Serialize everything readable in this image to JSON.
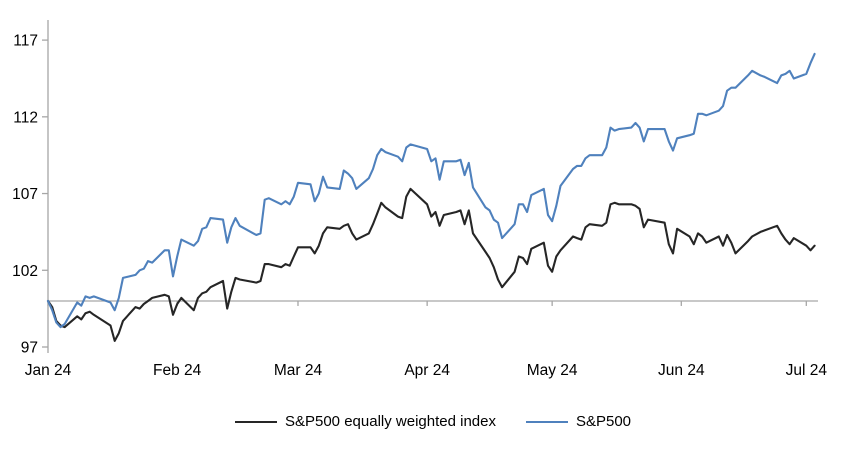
{
  "chart_data": {
    "type": "line",
    "title": "",
    "legend_position": "bottom",
    "axis_color": "#A6A6A6",
    "baseline_value": 100,
    "y_axis": {
      "tick_values": [
        97,
        102,
        107,
        112,
        117
      ],
      "tick_labels": [
        "97",
        "102",
        "107",
        "112",
        "117"
      ],
      "min": 97,
      "max": 117
    },
    "x_axis": {
      "tick_labels": [
        "Jan 24",
        "Feb 24",
        "Mar 24",
        "Apr 24",
        "May 24",
        "Jun 24",
        "Jul 24"
      ],
      "month_start_offsets": [
        0,
        31,
        60,
        91,
        121,
        152,
        182
      ],
      "days_shown": 184
    },
    "dates": [
      "01-01",
      "01-02",
      "01-03",
      "01-04",
      "01-05",
      "01-08",
      "01-09",
      "01-10",
      "01-11",
      "01-12",
      "01-16",
      "01-17",
      "01-18",
      "01-19",
      "01-22",
      "01-23",
      "01-24",
      "01-25",
      "01-26",
      "01-29",
      "01-30",
      "01-31",
      "02-01",
      "02-02",
      "02-05",
      "02-06",
      "02-07",
      "02-08",
      "02-09",
      "02-12",
      "02-13",
      "02-14",
      "02-15",
      "02-16",
      "02-20",
      "02-21",
      "02-22",
      "02-23",
      "02-26",
      "02-27",
      "02-28",
      "02-29",
      "03-01",
      "03-04",
      "03-05",
      "03-06",
      "03-07",
      "03-08",
      "03-11",
      "03-12",
      "03-13",
      "03-14",
      "03-15",
      "03-18",
      "03-19",
      "03-20",
      "03-21",
      "03-22",
      "03-25",
      "03-26",
      "03-27",
      "03-28",
      "04-01",
      "04-02",
      "04-03",
      "04-04",
      "04-05",
      "04-08",
      "04-09",
      "04-10",
      "04-11",
      "04-12",
      "04-15",
      "04-16",
      "04-17",
      "04-18",
      "04-19",
      "04-22",
      "04-23",
      "04-24",
      "04-25",
      "04-26",
      "04-29",
      "04-30",
      "05-01",
      "05-02",
      "05-03",
      "05-06",
      "05-07",
      "05-08",
      "05-09",
      "05-10",
      "05-13",
      "05-14",
      "05-15",
      "05-16",
      "05-17",
      "05-20",
      "05-21",
      "05-22",
      "05-23",
      "05-24",
      "05-28",
      "05-29",
      "05-30",
      "05-31",
      "06-03",
      "06-04",
      "06-05",
      "06-06",
      "06-07",
      "06-10",
      "06-11",
      "06-12",
      "06-13",
      "06-14",
      "06-17",
      "06-18",
      "06-20",
      "06-21",
      "06-24",
      "06-25",
      "06-26",
      "06-27",
      "06-28",
      "07-01",
      "07-02",
      "07-03"
    ],
    "series": [
      {
        "name": "S&P500 equally weighted index",
        "color": "#262626",
        "values": [
          100.0,
          99.6,
          98.7,
          98.4,
          98.3,
          99.0,
          98.8,
          99.2,
          99.3,
          99.1,
          98.4,
          97.4,
          97.9,
          98.7,
          99.6,
          99.5,
          99.8,
          100.0,
          100.2,
          100.4,
          100.3,
          99.1,
          99.8,
          100.2,
          99.4,
          100.2,
          100.5,
          100.6,
          100.9,
          101.3,
          99.5,
          100.6,
          101.5,
          101.4,
          101.2,
          101.3,
          102.4,
          102.4,
          102.2,
          102.4,
          102.3,
          102.9,
          103.5,
          103.5,
          103.1,
          103.6,
          104.4,
          104.8,
          104.7,
          104.9,
          105.0,
          104.4,
          104.0,
          104.4,
          105.0,
          105.7,
          106.4,
          106.1,
          105.5,
          105.4,
          106.8,
          107.3,
          106.3,
          105.5,
          105.8,
          104.9,
          105.6,
          105.8,
          105.9,
          105.0,
          105.9,
          104.4,
          103.2,
          102.8,
          102.2,
          101.4,
          100.9,
          101.9,
          102.9,
          102.8,
          102.4,
          103.4,
          103.8,
          102.3,
          101.9,
          102.9,
          103.3,
          104.2,
          104.1,
          104.0,
          104.8,
          105.0,
          104.9,
          105.1,
          106.3,
          106.4,
          106.3,
          106.3,
          106.2,
          106.0,
          104.8,
          105.3,
          105.1,
          103.7,
          103.1,
          104.7,
          104.2,
          103.7,
          104.4,
          104.2,
          103.8,
          104.2,
          103.6,
          104.3,
          103.8,
          103.1,
          103.9,
          104.2,
          104.5,
          104.6,
          104.9,
          104.4,
          104.0,
          103.7,
          104.1,
          103.6,
          103.3,
          103.6
        ]
      },
      {
        "name": "S&P500",
        "color": "#4F81BD",
        "values": [
          100.0,
          99.4,
          98.6,
          98.3,
          98.5,
          99.9,
          99.7,
          100.3,
          100.2,
          100.3,
          99.9,
          99.4,
          100.2,
          101.5,
          101.7,
          102.0,
          102.1,
          102.6,
          102.5,
          103.3,
          103.3,
          101.6,
          102.9,
          104.0,
          103.6,
          103.9,
          104.7,
          104.8,
          105.4,
          105.3,
          103.8,
          104.8,
          105.4,
          104.9,
          104.3,
          104.4,
          106.6,
          106.7,
          106.3,
          106.5,
          106.3,
          106.8,
          107.7,
          107.6,
          106.5,
          107.0,
          108.1,
          107.4,
          107.3,
          108.5,
          108.3,
          108.0,
          107.3,
          108.0,
          108.6,
          109.5,
          109.9,
          109.7,
          109.4,
          109.1,
          110.0,
          110.2,
          109.9,
          109.1,
          109.3,
          107.9,
          109.1,
          109.1,
          109.2,
          108.2,
          109.0,
          107.4,
          106.1,
          105.9,
          105.3,
          105.1,
          104.1,
          105.0,
          106.3,
          106.3,
          105.8,
          106.9,
          107.3,
          105.6,
          105.2,
          106.2,
          107.5,
          108.6,
          108.8,
          108.8,
          109.3,
          109.5,
          109.5,
          110.0,
          111.3,
          111.1,
          111.2,
          111.3,
          111.6,
          111.3,
          110.4,
          111.2,
          111.2,
          110.4,
          109.8,
          110.6,
          110.8,
          110.9,
          112.2,
          112.2,
          112.1,
          112.4,
          112.7,
          113.7,
          113.9,
          113.9,
          114.7,
          115.0,
          114.7,
          114.6,
          114.2,
          114.7,
          114.8,
          115.0,
          114.5,
          114.8,
          115.5,
          116.1
        ]
      }
    ]
  }
}
